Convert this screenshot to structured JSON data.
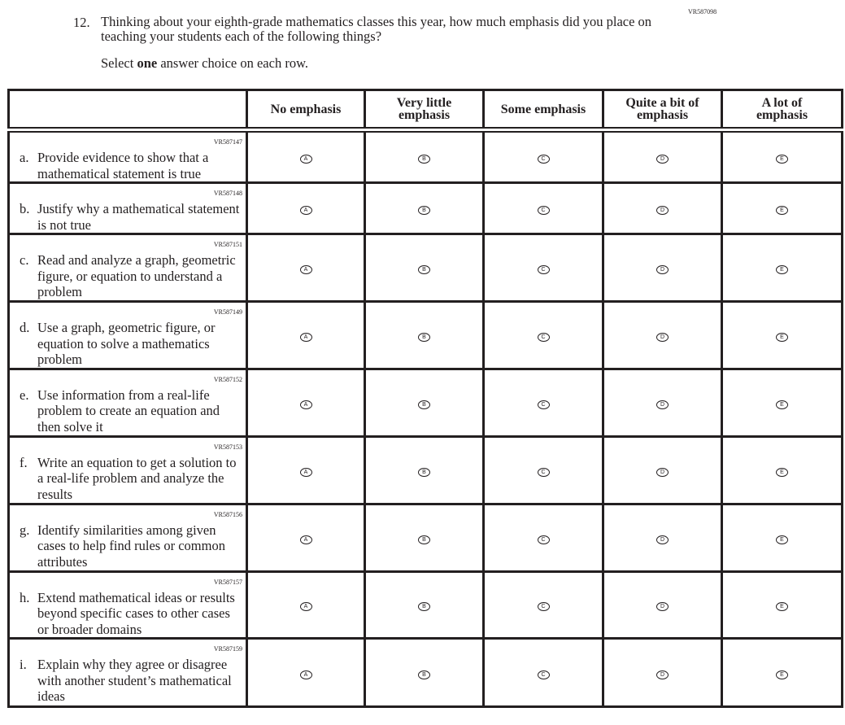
{
  "question_id": "VR587098",
  "number": "12.",
  "text": "Thinking about your eighth-grade mathematics classes this year, how much emphasis did you place on teaching your students each of the following things?",
  "instruction": {
    "before": "Select ",
    "bold": "one",
    "after": " answer choice on each row."
  },
  "columns": [
    "No emphasis",
    "Very little emphasis",
    "Some emphasis",
    "Quite a bit of emphasis",
    "A lot of emphasis"
  ],
  "choice_letters": [
    "A",
    "B",
    "C",
    "D",
    "E"
  ],
  "rows": [
    {
      "id": "VR587147",
      "letter": "a.",
      "text": "Provide evidence to show that a mathematical statement is true"
    },
    {
      "id": "VR587148",
      "letter": "b.",
      "text": "Justify why a mathematical statement is not true"
    },
    {
      "id": "VR587151",
      "letter": "c.",
      "text": "Read and analyze a graph, geometric figure, or equation to understand a problem"
    },
    {
      "id": "VR587149",
      "letter": "d.",
      "text": "Use a graph, geometric figure, or equation to solve a mathematics problem"
    },
    {
      "id": "VR587152",
      "letter": "e.",
      "text": "Use information from a real-life problem to create an equation and then solve it"
    },
    {
      "id": "VR587153",
      "letter": "f.",
      "text": "Write an equation to get a solution to a real-life problem and analyze the results"
    },
    {
      "id": "VR587156",
      "letter": "g.",
      "text": "Identify similarities among given cases to help find rules or common attributes"
    },
    {
      "id": "VR587157",
      "letter": "h.",
      "text": "Extend mathematical ideas or results beyond specific cases to other cases or broader domains"
    },
    {
      "id": "VR587159",
      "letter": "i.",
      "text": "Explain why they agree or disagree with another student’s mathematical ideas"
    }
  ]
}
